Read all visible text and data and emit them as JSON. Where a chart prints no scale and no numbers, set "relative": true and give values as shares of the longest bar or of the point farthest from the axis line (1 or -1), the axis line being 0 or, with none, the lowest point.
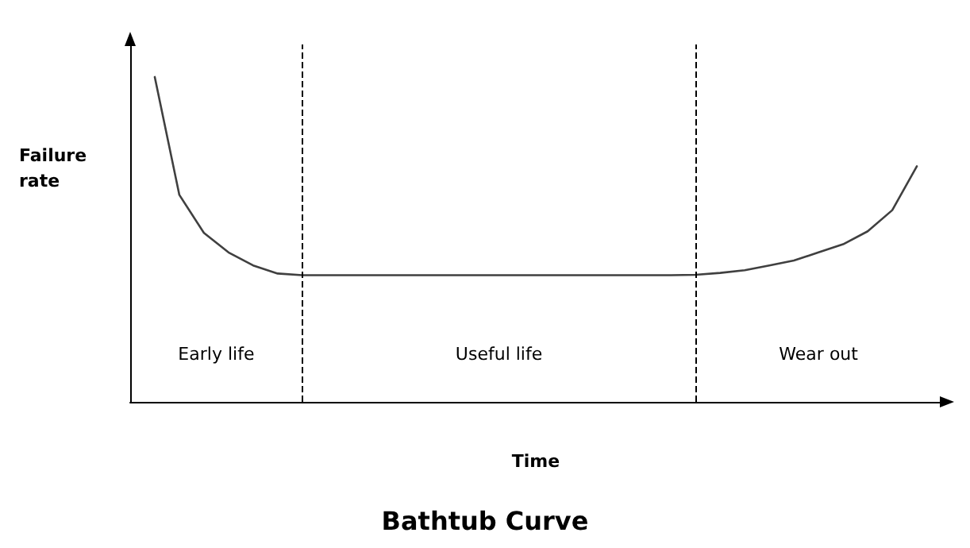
{
  "chart_data": {
    "type": "line",
    "title": "Bathtub Curve",
    "xlabel": "Time",
    "ylabel": "Failure rate",
    "relative": true,
    "grid": false,
    "marker": "none",
    "line_style": "solid",
    "categories": [
      null,
      null,
      null,
      null,
      null,
      null,
      null,
      null,
      null,
      null,
      null,
      null,
      null,
      null,
      null,
      null,
      null,
      null,
      null,
      null,
      null,
      null,
      null,
      null,
      null,
      null,
      null,
      null,
      null,
      null,
      null,
      null,
      null,
      null
    ],
    "series": [
      {
        "color": "#404040",
        "values": [
          null,
          1.0,
          0.637,
          0.52,
          0.46,
          0.42,
          0.395,
          0.39,
          0.39,
          0.39,
          0.39,
          0.39,
          0.39,
          0.39,
          0.39,
          0.39,
          0.39,
          0.39,
          0.39,
          0.39,
          0.39,
          0.39,
          0.39,
          0.391,
          0.397,
          0.405,
          0.42,
          0.435,
          0.46,
          0.485,
          0.525,
          0.59,
          0.725,
          null
        ]
      }
    ],
    "annotations": [
      "Early life",
      "Useful life",
      "Wear out"
    ]
  }
}
